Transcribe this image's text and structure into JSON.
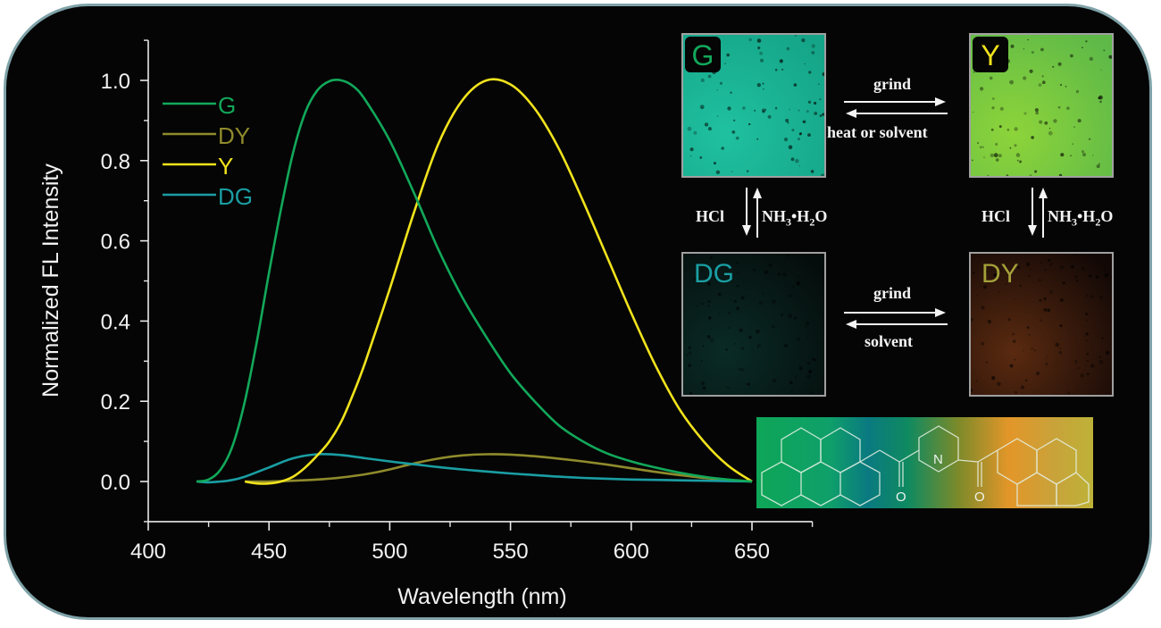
{
  "chart_data": {
    "type": "line",
    "title": "",
    "xlabel": "Wavelength (nm)",
    "ylabel": "Normalized FL Intensity",
    "xlim": [
      400,
      675
    ],
    "ylim": [
      -0.1,
      1.1
    ],
    "xticks": [
      400,
      450,
      500,
      550,
      600,
      650
    ],
    "xtick_labels": [
      "400",
      "450",
      "500",
      "550",
      "600",
      "650"
    ],
    "xminor": [
      425,
      475,
      525,
      575,
      625,
      675
    ],
    "yticks": [
      0.0,
      0.2,
      0.4,
      0.6,
      0.8,
      1.0
    ],
    "ytick_labels": [
      "0.0",
      "0.2",
      "0.4",
      "0.6",
      "0.8",
      "1.0"
    ],
    "yminor": [
      -0.1,
      0.1,
      0.3,
      0.5,
      0.7,
      0.9,
      1.1
    ],
    "grid": false,
    "legend_position": "top-left",
    "series": [
      {
        "name": "G",
        "color": "#12a85a",
        "x": [
          420,
          425,
          430,
          435,
          440,
          445,
          450,
          455,
          460,
          465,
          470,
          475,
          480,
          485,
          490,
          500,
          510,
          520,
          530,
          540,
          550,
          560,
          570,
          580,
          590,
          600,
          610,
          620,
          630,
          640,
          650
        ],
        "y": [
          0.0,
          0.005,
          0.03,
          0.09,
          0.2,
          0.35,
          0.52,
          0.68,
          0.82,
          0.92,
          0.975,
          0.998,
          1.0,
          0.985,
          0.95,
          0.85,
          0.72,
          0.58,
          0.46,
          0.36,
          0.27,
          0.2,
          0.14,
          0.1,
          0.07,
          0.05,
          0.035,
          0.022,
          0.012,
          0.005,
          0.0
        ]
      },
      {
        "name": "DY",
        "color": "#8f8b2c",
        "x": [
          440,
          450,
          460,
          470,
          480,
          490,
          500,
          510,
          520,
          530,
          540,
          550,
          560,
          570,
          580,
          590,
          600,
          610,
          620,
          630,
          640,
          650
        ],
        "y": [
          0.0,
          0.0,
          0.002,
          0.005,
          0.01,
          0.018,
          0.03,
          0.045,
          0.057,
          0.065,
          0.068,
          0.067,
          0.063,
          0.057,
          0.05,
          0.042,
          0.033,
          0.024,
          0.016,
          0.009,
          0.004,
          0.0
        ]
      },
      {
        "name": "Y",
        "color": "#f1e31c",
        "x": [
          440,
          445,
          450,
          455,
          460,
          465,
          470,
          475,
          480,
          485,
          490,
          500,
          510,
          520,
          530,
          540,
          550,
          560,
          570,
          580,
          590,
          600,
          610,
          620,
          630,
          640,
          650
        ],
        "y": [
          0.0,
          -0.005,
          -0.005,
          0.0,
          0.012,
          0.035,
          0.065,
          0.1,
          0.15,
          0.22,
          0.3,
          0.48,
          0.67,
          0.84,
          0.95,
          1.0,
          0.99,
          0.93,
          0.83,
          0.7,
          0.56,
          0.42,
          0.29,
          0.18,
          0.1,
          0.04,
          0.0
        ]
      },
      {
        "name": "DG",
        "color": "#1a9ea3",
        "x": [
          420,
          425,
          430,
          435,
          440,
          450,
          460,
          470,
          480,
          490,
          500,
          510,
          520,
          530,
          540,
          550,
          560,
          570,
          580,
          590,
          600,
          610,
          620,
          630,
          640,
          650
        ],
        "y": [
          0.0,
          -0.002,
          0.0,
          0.004,
          0.012,
          0.035,
          0.058,
          0.068,
          0.066,
          0.058,
          0.05,
          0.043,
          0.036,
          0.03,
          0.025,
          0.02,
          0.016,
          0.012,
          0.009,
          0.007,
          0.005,
          0.004,
          0.003,
          0.002,
          0.001,
          0.0
        ]
      }
    ]
  },
  "photos": [
    {
      "id": "G",
      "label": "G",
      "label_color": "#12a85a",
      "has_badge": true,
      "fill": "#1fc1a0",
      "fill2": "#15a487"
    },
    {
      "id": "Y",
      "label": "Y",
      "label_color": "#f1e31c",
      "has_badge": true,
      "fill": "#8dd43a",
      "fill2": "#5eb948"
    },
    {
      "id": "DG",
      "label": "DG",
      "label_color": "#1a9ea3",
      "has_badge": false,
      "fill": "#0a2b26",
      "fill2": "#050d0c"
    },
    {
      "id": "DY",
      "label": "DY",
      "label_color": "#a4a03a",
      "has_badge": false,
      "fill": "#5a2a10",
      "fill2": "#120806"
    }
  ],
  "reactions": {
    "top_forward": "grind",
    "top_backward": "heat or solvent",
    "bottom_forward": "grind",
    "bottom_backward": "solvent",
    "left_down": "HCl",
    "left_up_main": "NH",
    "left_up_sub1": "3",
    "left_up_mid": "•H",
    "left_up_sub2": "2",
    "left_up_end": "O",
    "right_down": "HCl",
    "right_up_main": "NH",
    "right_up_sub1": "3",
    "right_up_mid": "•H",
    "right_up_sub2": "2",
    "right_up_end": "O"
  },
  "structure": {
    "atom_n": "N",
    "atom_o1": "O",
    "atom_o2": "O"
  },
  "colors": {
    "frame_border": "#7fa3a8",
    "background": "#050505",
    "axis": "#e8e8e8"
  }
}
